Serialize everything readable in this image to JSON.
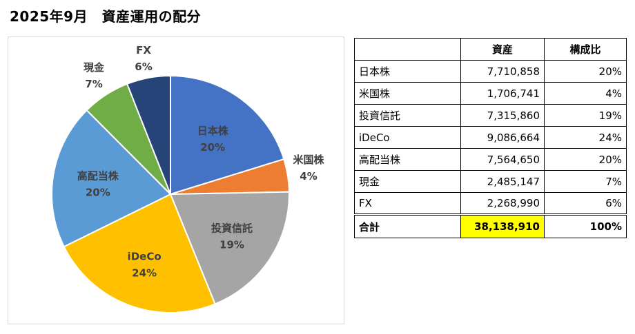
{
  "title": "2025年9月　資産運用の配分",
  "colors": {
    "日本株": "#4472c4",
    "米国株": "#ed7d31",
    "投資信託": "#a5a5a5",
    "iDeCo": "#ffc000",
    "高配当株": "#5b9bd5",
    "現金": "#70ad47",
    "FX": "#264478",
    "total_highlight": "#ffff00"
  },
  "chart_data": {
    "type": "pie",
    "slices": [
      {
        "name": "日本株",
        "value": 7710858,
        "label": "20%"
      },
      {
        "name": "米国株",
        "value": 1706741,
        "label": "4%"
      },
      {
        "name": "投資信託",
        "value": 7315860,
        "label": "19%"
      },
      {
        "name": "iDeCo",
        "value": 9086664,
        "label": "24%"
      },
      {
        "name": "高配当株",
        "value": 7564650,
        "label": "20%"
      },
      {
        "name": "現金",
        "value": 2485147,
        "label": "7%"
      },
      {
        "name": "FX",
        "value": 2268990,
        "label": "6%"
      }
    ]
  },
  "table": {
    "headers": [
      "",
      "資産",
      "構成比"
    ],
    "rows": [
      {
        "name": "日本株",
        "value": "7,710,858",
        "pct": "20%"
      },
      {
        "name": "米国株",
        "value": "1,706,741",
        "pct": "4%"
      },
      {
        "name": "投資信託",
        "value": "7,315,860",
        "pct": "19%"
      },
      {
        "name": "iDeCo",
        "value": "9,086,664",
        "pct": "24%"
      },
      {
        "name": "高配当株",
        "value": "7,564,650",
        "pct": "20%"
      },
      {
        "name": "現金",
        "value": "2,485,147",
        "pct": "7%"
      },
      {
        "name": "FX",
        "value": "2,268,990",
        "pct": "6%"
      }
    ],
    "total": {
      "name": "合計",
      "value": "38,138,910",
      "pct": "100%"
    }
  }
}
